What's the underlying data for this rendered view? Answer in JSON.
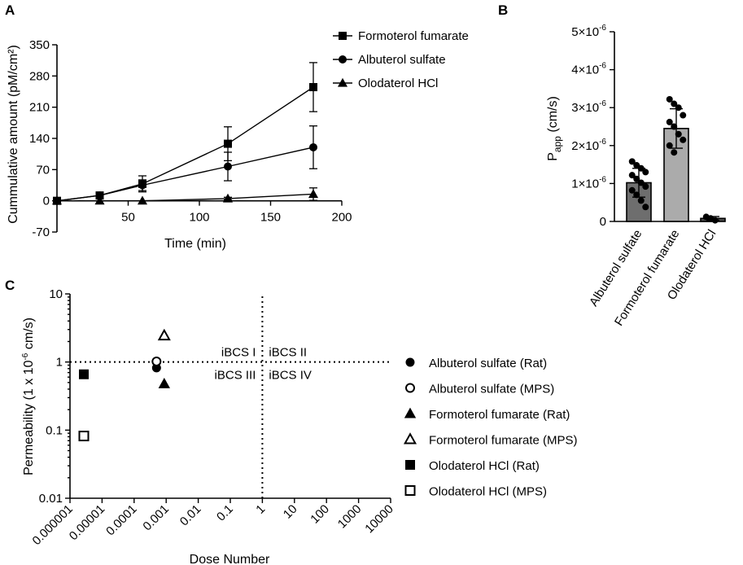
{
  "chart_data": [
    {
      "panel": "A",
      "type": "line",
      "xlabel": "Time (min)",
      "ylabel": "Cummulative amount (pM/cm²)",
      "xlim": [
        0,
        200
      ],
      "ylim": [
        -70,
        350
      ],
      "x_ticks": [
        50,
        100,
        150,
        200
      ],
      "y_ticks": [
        -70,
        0,
        70,
        140,
        210,
        280,
        350
      ],
      "legend_position": "top-right",
      "series": [
        {
          "name": "Formoterol fumarate",
          "marker": "square",
          "x": [
            0,
            30,
            60,
            120,
            180
          ],
          "y": [
            0,
            12,
            38,
            128,
            255
          ],
          "err": [
            0,
            4,
            18,
            38,
            55
          ]
        },
        {
          "name": "Albuterol sulfate",
          "marker": "circle",
          "x": [
            0,
            30,
            60,
            120,
            180
          ],
          "y": [
            0,
            12,
            35,
            77,
            120
          ],
          "err": [
            0,
            4,
            12,
            32,
            48
          ]
        },
        {
          "name": "Olodaterol HCl",
          "marker": "triangle",
          "x": [
            0,
            30,
            60,
            120,
            180
          ],
          "y": [
            0,
            0,
            0,
            5,
            15
          ],
          "err": [
            0,
            0,
            0,
            3,
            14
          ]
        }
      ]
    },
    {
      "panel": "B",
      "type": "bar",
      "ylabel": "P",
      "ylabel_sub": "app",
      "ylabel_unit": " (cm/s)",
      "ylim": [
        0,
        5
      ],
      "y_tick_values": [
        0,
        1,
        2,
        3,
        4,
        5
      ],
      "y_tick_labels": [
        "0",
        "1×10",
        "2×10",
        "3×10",
        "4×10",
        "5×10"
      ],
      "y_tick_exponent": "-6",
      "categories": [
        "Albuterol sulfate",
        "Formoterol fumarate",
        "Olodaterol HCl"
      ],
      "values": [
        1.02,
        2.45,
        0.08
      ],
      "err": [
        0.38,
        0.52,
        0.05
      ],
      "bar_colors": [
        "#6e6e6e",
        "#ababab",
        "#4d4d4d"
      ],
      "points": [
        [
          1.58,
          1.48,
          1.4,
          1.3,
          1.22,
          1.12,
          1.02,
          0.92,
          0.82,
          0.7,
          0.55,
          0.38
        ],
        [
          3.22,
          3.1,
          3.0,
          2.8,
          2.62,
          2.5,
          2.3,
          2.15,
          2.0,
          1.82
        ],
        [
          0.12,
          0.08,
          0.03
        ]
      ]
    },
    {
      "panel": "C",
      "type": "scatter",
      "xscale": "log",
      "yscale": "log",
      "xlabel": "Dose Number",
      "ylabel": "Permeability (1 x 10",
      "ylabel_exp": "-6",
      "ylabel_unit": " cm/s)",
      "xlim": [
        1e-06,
        10000
      ],
      "ylim": [
        0.01,
        10
      ],
      "x_tick_labels": [
        "0.000001",
        "0.00001",
        "0.0001",
        "0.001",
        "0.01",
        "0.1",
        "1",
        "10",
        "100",
        "1000",
        "10000"
      ],
      "y_tick_labels": [
        "0.01",
        "0.1",
        "1",
        "10"
      ],
      "divider_x": 1,
      "divider_y": 1,
      "quadrant_labels": [
        "iBCS I",
        "iBCS II",
        "iBCS III",
        "iBCS IV"
      ],
      "legend_position": "right",
      "series": [
        {
          "name": "Albuterol sulfate (Rat)",
          "marker": "circle",
          "filled": true,
          "x": 0.0005,
          "y": 0.82
        },
        {
          "name": "Albuterol sulfate (MPS)",
          "marker": "circle",
          "filled": false,
          "x": 0.0005,
          "y": 1.02
        },
        {
          "name": "Formoterol fumarate (Rat)",
          "marker": "triangle",
          "filled": true,
          "x": 0.00087,
          "y": 0.48
        },
        {
          "name": "Formoterol fumarate (MPS)",
          "marker": "triangle",
          "filled": false,
          "x": 0.00087,
          "y": 2.45
        },
        {
          "name": "Olodaterol HCl (Rat)",
          "marker": "square",
          "filled": true,
          "x": 2.7e-06,
          "y": 0.66
        },
        {
          "name": "Olodaterol HCl (MPS)",
          "marker": "square",
          "filled": false,
          "x": 2.7e-06,
          "y": 0.082
        }
      ]
    }
  ]
}
